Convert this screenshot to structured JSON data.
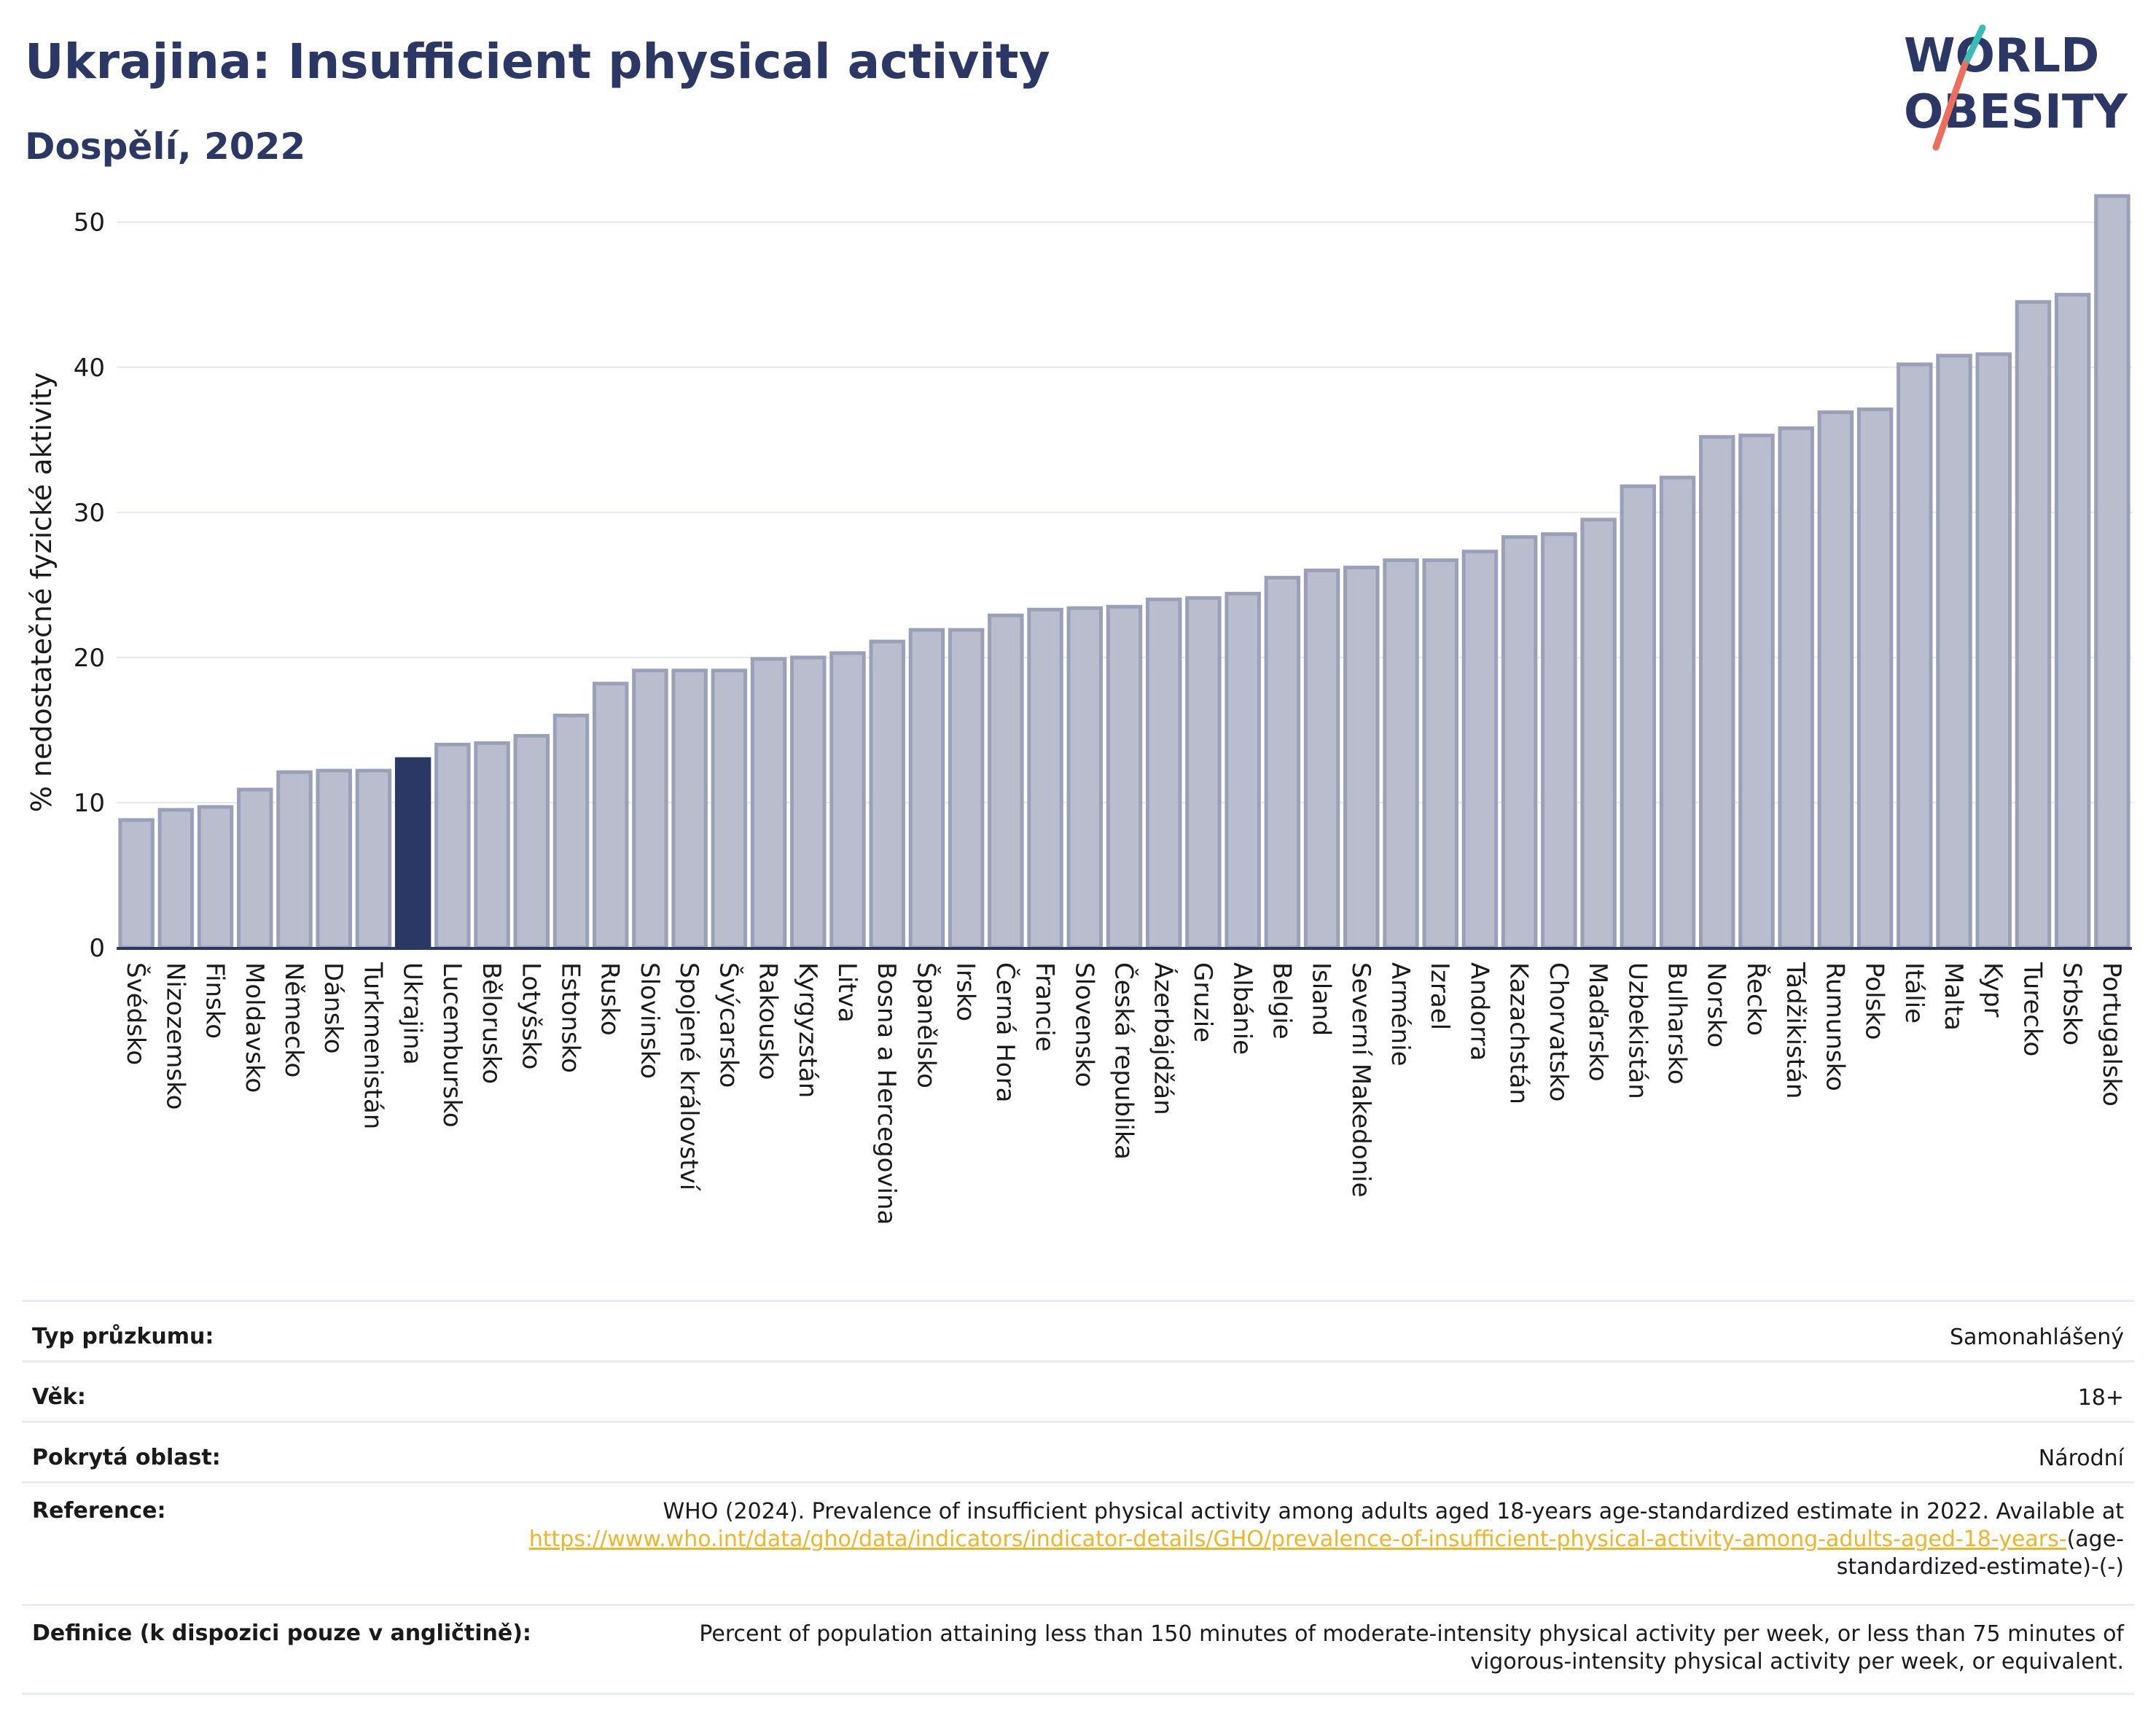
{
  "header": {
    "title": "Ukrajina: Insufficient physical activity",
    "subtitle": "Dospělí, 2022",
    "logo_line1": "WORLD",
    "logo_line2": "OBESITY"
  },
  "colors": {
    "title": "#2b3764",
    "bar": "#b9bdcd",
    "bar_border": "#9aa0b8",
    "highlight": "#2b3764",
    "grid": "#e6e8ef",
    "link": "#f0b429",
    "logo_teal": "#3bbdb7",
    "logo_coral": "#ef6e5b"
  },
  "chart_data": {
    "type": "bar",
    "ylabel": "% nedostatečné fyzické aktivity",
    "xlabel": "",
    "ylim": [
      0,
      53
    ],
    "yticks": [
      0,
      10,
      20,
      30,
      40,
      50
    ],
    "grid": true,
    "highlight": "Ukrajina",
    "categories": [
      "Švédsko",
      "Nizozemsko",
      "Finsko",
      "Moldavsko",
      "Německo",
      "Dánsko",
      "Turkmenistán",
      "Ukrajina",
      "Lucembursko",
      "Bělorusko",
      "Lotyšsko",
      "Estonsko",
      "Rusko",
      "Slovinsko",
      "Spojené království",
      "Švýcarsko",
      "Rakousko",
      "Kyrgyzstán",
      "Litva",
      "Bosna a Hercegovina",
      "Španělsko",
      "Irsko",
      "Černá Hora",
      "Francie",
      "Slovensko",
      "Česká republika",
      "Ázerbájdžán",
      "Gruzie",
      "Albánie",
      "Belgie",
      "Island",
      "Severní Makedonie",
      "Arménie",
      "Izrael",
      "Andorra",
      "Kazachstán",
      "Chorvatsko",
      "Maďarsko",
      "Uzbekistán",
      "Bulharsko",
      "Norsko",
      "Řecko",
      "Tádžikistán",
      "Rumunsko",
      "Polsko",
      "Itálie",
      "Malta",
      "Kypr",
      "Turecko",
      "Srbsko",
      "Portugalsko"
    ],
    "values": [
      8.8,
      9.5,
      9.7,
      10.9,
      12.1,
      12.2,
      12.2,
      13.0,
      14.0,
      14.1,
      14.6,
      16.0,
      18.2,
      19.1,
      19.1,
      19.1,
      19.9,
      20.0,
      20.3,
      21.1,
      21.9,
      21.9,
      22.9,
      23.3,
      23.4,
      23.5,
      24.0,
      24.1,
      24.4,
      25.5,
      26.0,
      26.2,
      26.7,
      26.7,
      27.3,
      28.3,
      28.5,
      29.5,
      31.8,
      32.4,
      35.2,
      35.3,
      35.8,
      36.9,
      37.1,
      40.2,
      40.8,
      40.9,
      44.5,
      45.0,
      51.8
    ]
  },
  "info": {
    "survey_label": "Typ průzkumu:",
    "survey_value": "Samonahlášený",
    "age_label": "Věk:",
    "age_value": "18+",
    "area_label": "Pokrytá oblast:",
    "area_value": "Národní",
    "reference_label": "Reference:",
    "reference_text": "WHO (2024). Prevalence of insufficient physical activity among adults aged 18-years age-standardized estimate in 2022. Available at",
    "reference_link": "https://www.who.int/data/gho/data/indicators/indicator-details/GHO/prevalence-of-insufficient-physical-activity-among-adults-aged-18-years-",
    "reference_suffix": "(age-standardized-estimate)-(-)",
    "definition_label": "Definice (k dispozici pouze v angličtině):",
    "definition_value": "Percent of population attaining less than 150 minutes of moderate-intensity physical activity per week, or less than 75 minutes of vigorous-intensity physical activity per week, or equivalent."
  }
}
